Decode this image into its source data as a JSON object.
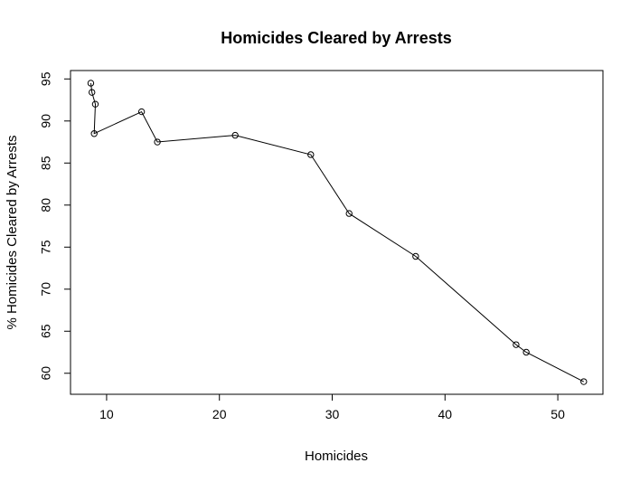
{
  "chart_data": {
    "type": "line",
    "title": "Homicides Cleared by Arrests",
    "xlabel": "Homicides",
    "ylabel": "% Homicides Cleared by Arrests",
    "xlim": [
      6.8,
      54.0
    ],
    "ylim": [
      57.5,
      96.0
    ],
    "xticks": [
      10,
      20,
      30,
      40,
      50
    ],
    "yticks": [
      60,
      65,
      70,
      75,
      80,
      85,
      90,
      95
    ],
    "grid": false,
    "legend": "none",
    "marker": "open-circle",
    "line_color": "#000000",
    "series": [
      {
        "x": [
          8.6,
          8.7,
          9.0,
          8.9,
          13.1,
          14.5,
          21.4,
          28.1,
          31.5,
          37.4,
          46.3,
          47.2,
          52.3
        ],
        "y": [
          94.5,
          93.4,
          92.0,
          88.5,
          91.1,
          87.5,
          88.3,
          86.0,
          79.0,
          73.9,
          63.4,
          62.5,
          59.0
        ]
      }
    ]
  }
}
